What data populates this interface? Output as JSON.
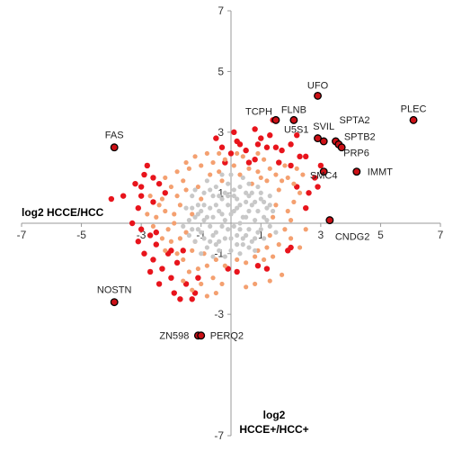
{
  "chart_data": {
    "type": "scatter",
    "xlim": [
      -7,
      7
    ],
    "ylim": [
      -7,
      7
    ],
    "x_ticks": [
      -7,
      -5,
      -3,
      -1,
      1,
      3,
      5,
      7
    ],
    "y_ticks": [
      -7,
      -3,
      -1,
      1,
      3,
      5,
      7
    ],
    "xlabel": "log2 HCCE/HCC",
    "ylabel_line1": "log2",
    "ylabel_line2": "HCCE+/HCC+",
    "grid": false,
    "colors": {
      "grey": "#c8c8c8",
      "orange": "#f4a070",
      "red": "#e8141c",
      "labeled_fill": "#cc1016",
      "labeled_stroke": "#000000",
      "axis": "#999999"
    },
    "labeled_points": [
      {
        "name": "UFO",
        "x": 2.9,
        "y": 4.2
      },
      {
        "name": "FLNB",
        "x": 2.1,
        "y": 3.4
      },
      {
        "name": "TCPH",
        "x": 1.5,
        "y": 3.4
      },
      {
        "name": "PLEC",
        "x": 6.1,
        "y": 3.4
      },
      {
        "name": "FAS",
        "x": -3.9,
        "y": 2.5
      },
      {
        "name": "U5S1",
        "x": 2.9,
        "y": 2.8
      },
      {
        "name": "SVIL",
        "x": 3.1,
        "y": 2.7
      },
      {
        "name": "SPTA2",
        "x": 3.5,
        "y": 2.7
      },
      {
        "name": "SPTB2",
        "x": 3.6,
        "y": 2.6
      },
      {
        "name": "PRP6",
        "x": 3.7,
        "y": 2.5
      },
      {
        "name": "IMMT",
        "x": 4.2,
        "y": 1.7
      },
      {
        "name": "SMC4",
        "x": 3.1,
        "y": 1.7
      },
      {
        "name": "CNDG2",
        "x": 3.3,
        "y": 0.1
      },
      {
        "name": "NOSTN",
        "x": -3.9,
        "y": -2.6
      },
      {
        "name": "ZN598",
        "x": -1.1,
        "y": -3.7
      },
      {
        "name": "PERQ2",
        "x": -1.0,
        "y": -3.7
      }
    ],
    "series": [
      {
        "color_key": "red",
        "points": [
          [
            -3.0,
            0.9
          ],
          [
            -3.2,
            1.3
          ],
          [
            -2.6,
            1.5
          ],
          [
            -2.4,
            1.3
          ],
          [
            -2.9,
            1.6
          ],
          [
            -2.2,
            1.0
          ],
          [
            -2.6,
            0.7
          ],
          [
            -3.1,
            0.5
          ],
          [
            -2.8,
            1.9
          ],
          [
            -3.0,
            1.2
          ],
          [
            -4.0,
            0.8
          ],
          [
            -3.6,
            0.9
          ],
          [
            -3.3,
            0.0
          ],
          [
            -3.0,
            -0.2
          ],
          [
            -2.5,
            -0.3
          ],
          [
            -3.1,
            -0.6
          ],
          [
            -2.7,
            -0.4
          ],
          [
            -2.9,
            -1.0
          ],
          [
            -2.6,
            -1.2
          ],
          [
            -2.5,
            -0.7
          ],
          [
            -2.3,
            -1.5
          ],
          [
            -2.7,
            -1.6
          ],
          [
            -2.0,
            -1.8
          ],
          [
            -2.4,
            -2.0
          ],
          [
            -1.7,
            -2.5
          ],
          [
            -1.9,
            -2.3
          ],
          [
            -1.5,
            -2.0
          ],
          [
            -1.2,
            -2.3
          ],
          [
            -1.1,
            -1.8
          ],
          [
            -1.8,
            -1.3
          ],
          [
            -1.6,
            -0.9
          ],
          [
            -2.0,
            -0.9
          ],
          [
            -2.1,
            -1.0
          ],
          [
            -1.3,
            -2.5
          ],
          [
            0.1,
            3.0
          ],
          [
            0.2,
            2.7
          ],
          [
            1.4,
            3.4
          ],
          [
            1.0,
            2.8
          ],
          [
            0.9,
            2.6
          ],
          [
            1.2,
            2.5
          ],
          [
            1.5,
            2.5
          ],
          [
            1.7,
            2.4
          ],
          [
            2.0,
            2.6
          ],
          [
            2.2,
            2.9
          ],
          [
            0.5,
            2.4
          ],
          [
            0.6,
            2.0
          ],
          [
            0.8,
            2.1
          ],
          [
            1.6,
            2.0
          ],
          [
            2.3,
            2.2
          ],
          [
            2.0,
            1.9
          ],
          [
            2.5,
            2.2
          ],
          [
            0.3,
            2.6
          ],
          [
            -0.5,
            2.8
          ],
          [
            -0.3,
            2.5
          ],
          [
            2.8,
            1.5
          ],
          [
            2.9,
            1.2
          ],
          [
            3.0,
            1.9
          ],
          [
            2.6,
            1.0
          ],
          [
            2.2,
            1.2
          ],
          [
            1.9,
            -0.9
          ],
          [
            1.2,
            -1.5
          ],
          [
            0.9,
            -1.4
          ],
          [
            0.2,
            -1.6
          ],
          [
            -0.1,
            -1.5
          ],
          [
            2.0,
            -0.8
          ],
          [
            2.5,
            0.5
          ],
          [
            1.3,
            2.9
          ],
          [
            0.8,
            3.1
          ],
          [
            0.0,
            2.3
          ],
          [
            -0.2,
            2.0
          ]
        ]
      },
      {
        "color_key": "orange",
        "points": [
          [
            -1.9,
            0.3
          ],
          [
            -1.8,
            0.9
          ],
          [
            -1.6,
            1.4
          ],
          [
            -1.4,
            1.8
          ],
          [
            -1.2,
            2.2
          ],
          [
            -1.0,
            1.9
          ],
          [
            -0.8,
            2.3
          ],
          [
            -0.6,
            2.0
          ],
          [
            -0.4,
            1.7
          ],
          [
            -0.2,
            2.1
          ],
          [
            0.1,
            1.9
          ],
          [
            0.4,
            2.2
          ],
          [
            0.6,
            1.8
          ],
          [
            0.9,
            1.7
          ],
          [
            1.1,
            2.1
          ],
          [
            1.3,
            1.8
          ],
          [
            1.5,
            1.6
          ],
          [
            1.7,
            1.4
          ],
          [
            1.9,
            1.5
          ],
          [
            2.1,
            1.3
          ],
          [
            2.3,
            1.0
          ],
          [
            2.1,
            0.7
          ],
          [
            1.9,
            0.4
          ],
          [
            2.0,
            0.1
          ],
          [
            1.8,
            -0.2
          ],
          [
            2.0,
            -0.5
          ],
          [
            1.6,
            -0.7
          ],
          [
            1.4,
            -1.1
          ],
          [
            1.1,
            -1.2
          ],
          [
            0.8,
            -1.1
          ],
          [
            0.5,
            -1.3
          ],
          [
            0.2,
            -1.2
          ],
          [
            -0.2,
            -1.4
          ],
          [
            -0.5,
            -1.2
          ],
          [
            -0.8,
            -1.4
          ],
          [
            -1.1,
            -1.5
          ],
          [
            -1.4,
            -1.6
          ],
          [
            -1.6,
            -1.2
          ],
          [
            -1.8,
            -1.0
          ],
          [
            -2.0,
            -0.6
          ],
          [
            -2.1,
            -0.2
          ],
          [
            -2.2,
            0.4
          ],
          [
            -2.3,
            0.8
          ],
          [
            -2.0,
            1.2
          ],
          [
            -1.7,
            0.6
          ],
          [
            -1.5,
            1.1
          ],
          [
            -1.3,
            0.3
          ],
          [
            -1.2,
            -0.6
          ],
          [
            -1.3,
            -0.9
          ],
          [
            -1.5,
            -0.3
          ],
          [
            -1.1,
            1.2
          ],
          [
            -0.7,
            1.6
          ],
          [
            -0.3,
            1.4
          ],
          [
            0.3,
            1.6
          ],
          [
            0.7,
            1.3
          ],
          [
            1.2,
            1.4
          ],
          [
            1.6,
            1.1
          ],
          [
            1.5,
            0.6
          ],
          [
            1.4,
            0.2
          ],
          [
            1.3,
            -0.4
          ],
          [
            1.2,
            -0.8
          ],
          [
            0.9,
            -0.9
          ],
          [
            -0.9,
            -1.0
          ],
          [
            -1.7,
            -0.5
          ],
          [
            -1.9,
            0.0
          ],
          [
            -2.5,
            0.2
          ],
          [
            -2.4,
            0.6
          ],
          [
            -2.6,
            -0.1
          ],
          [
            -2.3,
            -0.5
          ],
          [
            -2.2,
            -0.9
          ],
          [
            -1.0,
            -2.0
          ],
          [
            -0.6,
            -1.8
          ],
          [
            -0.3,
            -2.0
          ],
          [
            0.5,
            -2.1
          ],
          [
            1.3,
            -1.9
          ],
          [
            1.7,
            -1.7
          ],
          [
            2.4,
            1.6
          ],
          [
            2.2,
            1.8
          ],
          [
            1.8,
            1.9
          ],
          [
            0.9,
            2.3
          ],
          [
            0.2,
            2.3
          ],
          [
            -0.4,
            2.3
          ],
          [
            -1.5,
            2.0
          ],
          [
            -1.8,
            1.7
          ],
          [
            -2.2,
            1.5
          ],
          [
            2.5,
            -0.2
          ],
          [
            2.3,
            -0.8
          ],
          [
            -0.5,
            -2.3
          ],
          [
            0.8,
            -2.0
          ],
          [
            1.0,
            1.5
          ],
          [
            -1.0,
            0.8
          ],
          [
            -1.6,
            -1.9
          ],
          [
            -1.3,
            -2.2
          ],
          [
            -0.8,
            -2.4
          ],
          [
            -2.7,
            0.9
          ],
          [
            -2.8,
            0.3
          ]
        ]
      },
      {
        "color_key": "grey",
        "points": [
          [
            -1.3,
            0.9
          ],
          [
            -1.1,
            0.3
          ],
          [
            -0.9,
            1.0
          ],
          [
            -0.7,
            0.5
          ],
          [
            -0.5,
            1.2
          ],
          [
            -0.3,
            0.8
          ],
          [
            -0.1,
            1.3
          ],
          [
            0.1,
            0.9
          ],
          [
            0.3,
            1.2
          ],
          [
            0.5,
            0.7
          ],
          [
            0.7,
            1.0
          ],
          [
            0.9,
            0.4
          ],
          [
            1.1,
            0.7
          ],
          [
            1.3,
            0.9
          ],
          [
            1.2,
            0.1
          ],
          [
            1.0,
            -0.2
          ],
          [
            0.8,
            -0.5
          ],
          [
            0.6,
            -0.2
          ],
          [
            0.4,
            -0.7
          ],
          [
            0.2,
            -0.4
          ],
          [
            0.0,
            -0.9
          ],
          [
            -0.2,
            -0.5
          ],
          [
            -0.4,
            -0.9
          ],
          [
            -0.6,
            -0.4
          ],
          [
            -0.8,
            -0.8
          ],
          [
            -1.0,
            -0.3
          ],
          [
            -1.2,
            -0.6
          ],
          [
            -1.4,
            0.1
          ],
          [
            -1.5,
            0.5
          ],
          [
            -1.3,
            -0.2
          ],
          [
            -0.9,
            0.1
          ],
          [
            -0.6,
            0.2
          ],
          [
            -0.4,
            0.4
          ],
          [
            -0.2,
            0.1
          ],
          [
            0.0,
            0.3
          ],
          [
            0.2,
            0.5
          ],
          [
            0.4,
            0.2
          ],
          [
            0.6,
            0.4
          ],
          [
            0.8,
            0.1
          ],
          [
            -0.1,
            -0.2
          ],
          [
            0.1,
            -0.1
          ],
          [
            0.3,
            -0.2
          ],
          [
            -0.3,
            -0.1
          ],
          [
            -0.5,
            -0.3
          ],
          [
            0.5,
            -0.4
          ],
          [
            0.7,
            -0.6
          ],
          [
            -0.7,
            -0.6
          ],
          [
            -1.1,
            0.6
          ],
          [
            1.4,
            0.4
          ],
          [
            1.5,
            -0.3
          ],
          [
            -1.6,
            -0.1
          ],
          [
            -0.3,
            1.6
          ],
          [
            0.4,
            1.5
          ],
          [
            0.0,
            1.6
          ],
          [
            -0.8,
            1.4
          ],
          [
            0.9,
            1.2
          ],
          [
            -0.2,
            -1.1
          ],
          [
            0.3,
            -1.0
          ],
          [
            0.8,
            -0.9
          ],
          [
            -0.6,
            -1.1
          ],
          [
            -1.0,
            -1.0
          ],
          [
            1.1,
            -0.5
          ],
          [
            1.3,
            -0.1
          ],
          [
            -1.4,
            -0.4
          ],
          [
            -1.2,
            1.1
          ],
          [
            -0.4,
            0.9
          ],
          [
            0.2,
            0.8
          ],
          [
            0.6,
            0.9
          ],
          [
            1.0,
            1.0
          ],
          [
            -0.9,
            0.6
          ],
          [
            -0.1,
            0.6
          ],
          [
            0.3,
            0.0
          ],
          [
            -0.7,
            -0.1
          ],
          [
            0.9,
            -0.3
          ],
          [
            1.2,
            0.5
          ],
          [
            -1.1,
            -0.2
          ],
          [
            -0.5,
            0.6
          ],
          [
            0.1,
            1.1
          ],
          [
            0.7,
            0.6
          ],
          [
            -0.3,
            0.3
          ],
          [
            0.5,
            0.2
          ],
          [
            -0.8,
            0.2
          ],
          [
            0.0,
            -0.5
          ],
          [
            0.4,
            -0.5
          ],
          [
            -0.4,
            -0.6
          ],
          [
            -1.0,
            0.4
          ],
          [
            1.1,
            0.2
          ],
          [
            0.6,
            -0.8
          ],
          [
            -0.6,
            0.9
          ],
          [
            -0.2,
            1.0
          ],
          [
            0.2,
            -0.7
          ],
          [
            -1.3,
            0.5
          ],
          [
            1.0,
            0.8
          ],
          [
            0.8,
            0.7
          ],
          [
            -0.9,
            -0.5
          ],
          [
            0.1,
            0.4
          ],
          [
            -0.1,
            0.9
          ],
          [
            0.3,
            0.6
          ],
          [
            -0.5,
            -0.7
          ],
          [
            0.6,
            1.3
          ],
          [
            -1.2,
            0.2
          ],
          [
            1.3,
            0.6
          ],
          [
            0.5,
            1.0
          ],
          [
            -0.7,
            1.1
          ]
        ]
      }
    ]
  }
}
